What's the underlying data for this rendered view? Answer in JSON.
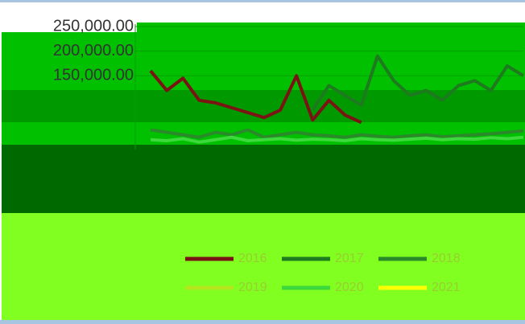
{
  "chart_data": {
    "type": "line",
    "categories": [
      null,
      null,
      null,
      null,
      null,
      null,
      null,
      null,
      null,
      null,
      null,
      null,
      null,
      null,
      null,
      null,
      null,
      null,
      null,
      null,
      null,
      null,
      null,
      null
    ],
    "ylim": [
      0,
      250000
    ],
    "yticks": [
      {
        "value": 150000,
        "label": "150,000.00"
      },
      {
        "value": 200000,
        "label": "200,000.00"
      },
      {
        "value": 250000,
        "label": "250,000.00"
      }
    ],
    "series": [
      {
        "name": "2016",
        "color": "#7a1414",
        "values": [
          160000,
          120000,
          145000,
          100000,
          95000,
          85000,
          75000,
          65000,
          80000,
          150000,
          60000,
          100000,
          70000,
          55000,
          null,
          null,
          null,
          null,
          null,
          null,
          null,
          null,
          null,
          null
        ]
      },
      {
        "name": "2017",
        "color": "#1e7a1e",
        "values": [
          null,
          null,
          null,
          null,
          null,
          null,
          null,
          null,
          null,
          null,
          80000,
          130000,
          110000,
          90000,
          190000,
          140000,
          110000,
          120000,
          100000,
          130000,
          140000,
          120000,
          170000,
          150000
        ]
      },
      {
        "name": "2018",
        "color": "#2a8a2a",
        "values": [
          40000,
          35000,
          30000,
          25000,
          35000,
          30000,
          40000,
          25000,
          30000,
          35000,
          30000,
          28000,
          25000,
          30000,
          27000,
          25000,
          28000,
          30000,
          26000,
          28000,
          30000,
          32000,
          35000,
          38000
        ]
      },
      {
        "name": "2019",
        "color": "#b5e61d",
        "values": [
          null,
          null,
          null,
          null,
          null,
          null,
          null,
          null,
          null,
          null,
          null,
          null,
          null,
          null,
          null,
          null,
          null,
          null,
          null,
          null,
          null,
          null,
          null,
          null
        ]
      },
      {
        "name": "2020",
        "color": "#3cd83c",
        "values": [
          20000,
          18000,
          22000,
          15000,
          20000,
          25000,
          18000,
          20000,
          22000,
          19000,
          21000,
          20000,
          18000,
          22000,
          20000,
          19000,
          21000,
          23000,
          20000,
          22000,
          21000,
          24000,
          22000,
          25000
        ]
      },
      {
        "name": "2021",
        "color": "#ffff00",
        "values": [
          null,
          null,
          null,
          null,
          null,
          null,
          null,
          null,
          null,
          null,
          null,
          null,
          null,
          null,
          null,
          null,
          null,
          null,
          null,
          null,
          null,
          null,
          null,
          null
        ]
      }
    ],
    "legend": "bottom"
  }
}
